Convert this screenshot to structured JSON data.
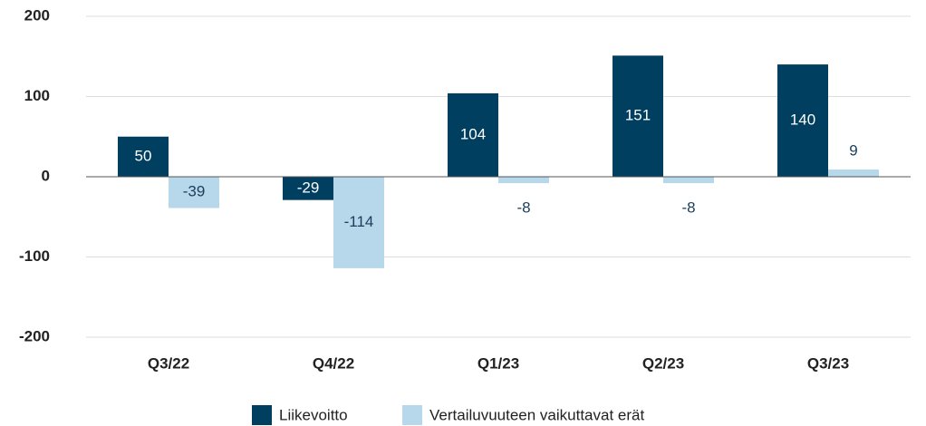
{
  "chart_data": {
    "type": "bar",
    "categories": [
      "Q3/22",
      "Q4/22",
      "Q1/23",
      "Q2/23",
      "Q3/23"
    ],
    "series": [
      {
        "name": "Liikevoitto",
        "color": "#003f5f",
        "values": [
          50,
          -29,
          104,
          151,
          140
        ]
      },
      {
        "name": "Vertailuvuuteen vaikuttavat erät",
        "color": "#b7d7ea",
        "values": [
          -39,
          -114,
          -8,
          -8,
          9
        ]
      }
    ],
    "ylim": [
      -200,
      200
    ],
    "yticks": [
      -200,
      -100,
      0,
      100,
      200
    ],
    "grid": true,
    "legend": "bottom"
  }
}
